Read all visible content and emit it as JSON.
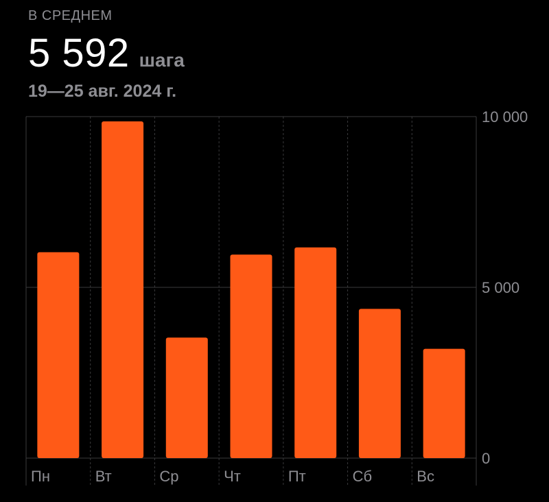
{
  "summary": {
    "caption": "В СРЕДНЕМ",
    "value": "5 592",
    "unit": "шага",
    "date_range": "19—25 авг. 2024 г."
  },
  "colors": {
    "bar": "#ff5a17",
    "background": "#000000",
    "grid": "#3a3a3c",
    "label": "#8e8e93"
  },
  "chart_data": {
    "type": "bar",
    "categories": [
      "Пн",
      "Вт",
      "Ср",
      "Чт",
      "Пт",
      "Сб",
      "Вс"
    ],
    "values": [
      6030,
      9860,
      3530,
      5960,
      6170,
      4370,
      3200
    ],
    "ylim": [
      0,
      10000
    ],
    "yticks": [
      0,
      5000,
      10000
    ],
    "ytick_labels": [
      "0",
      "5 000",
      "10 000"
    ],
    "yaxis_position": "right",
    "grid": true
  }
}
